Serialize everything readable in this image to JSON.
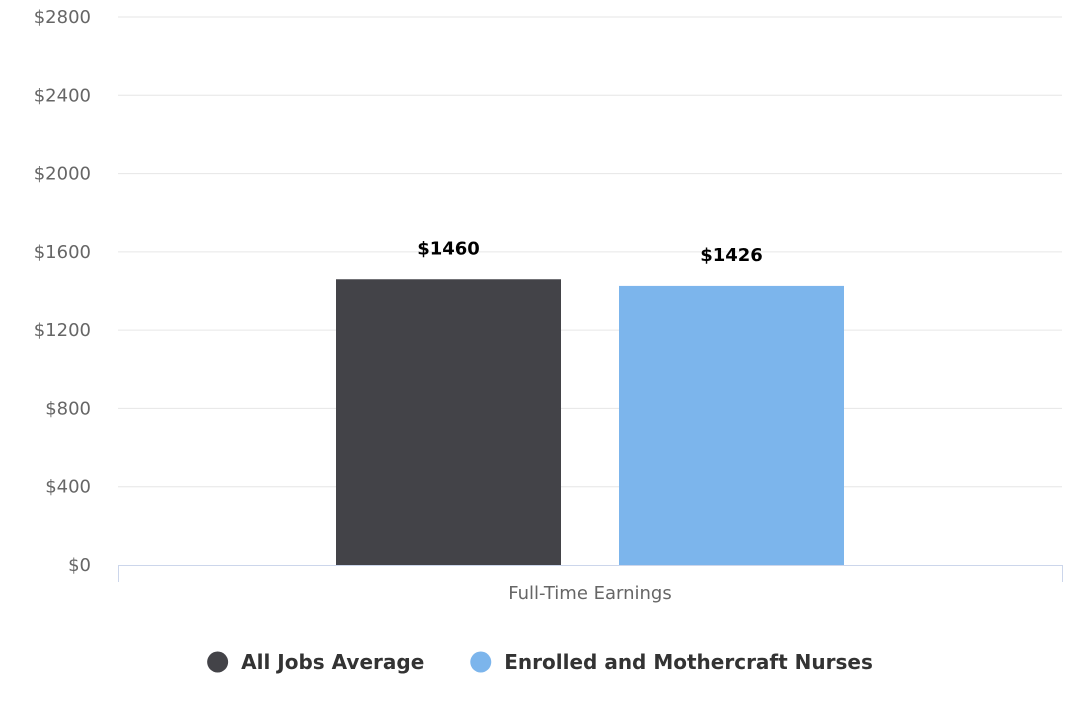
{
  "chart_data": {
    "type": "bar",
    "categories": [
      "Full-Time Earnings"
    ],
    "series": [
      {
        "name": "All Jobs Average",
        "values": [
          1460
        ],
        "value_labels": [
          "$1460"
        ],
        "color": "#434348"
      },
      {
        "name": "Enrolled and Mothercraft Nurses",
        "values": [
          1426
        ],
        "value_labels": [
          "$1426"
        ],
        "color": "#7cb5ec"
      }
    ],
    "ylim": [
      0,
      2800
    ],
    "y_ticks": [
      0,
      400,
      800,
      1200,
      1600,
      2000,
      2400,
      2800
    ],
    "y_tick_labels": [
      "$0",
      "$400",
      "$800",
      "$1200",
      "$1600",
      "$2000",
      "$2400",
      "$2800"
    ],
    "grid": true,
    "legend_position": "bottom-center"
  }
}
